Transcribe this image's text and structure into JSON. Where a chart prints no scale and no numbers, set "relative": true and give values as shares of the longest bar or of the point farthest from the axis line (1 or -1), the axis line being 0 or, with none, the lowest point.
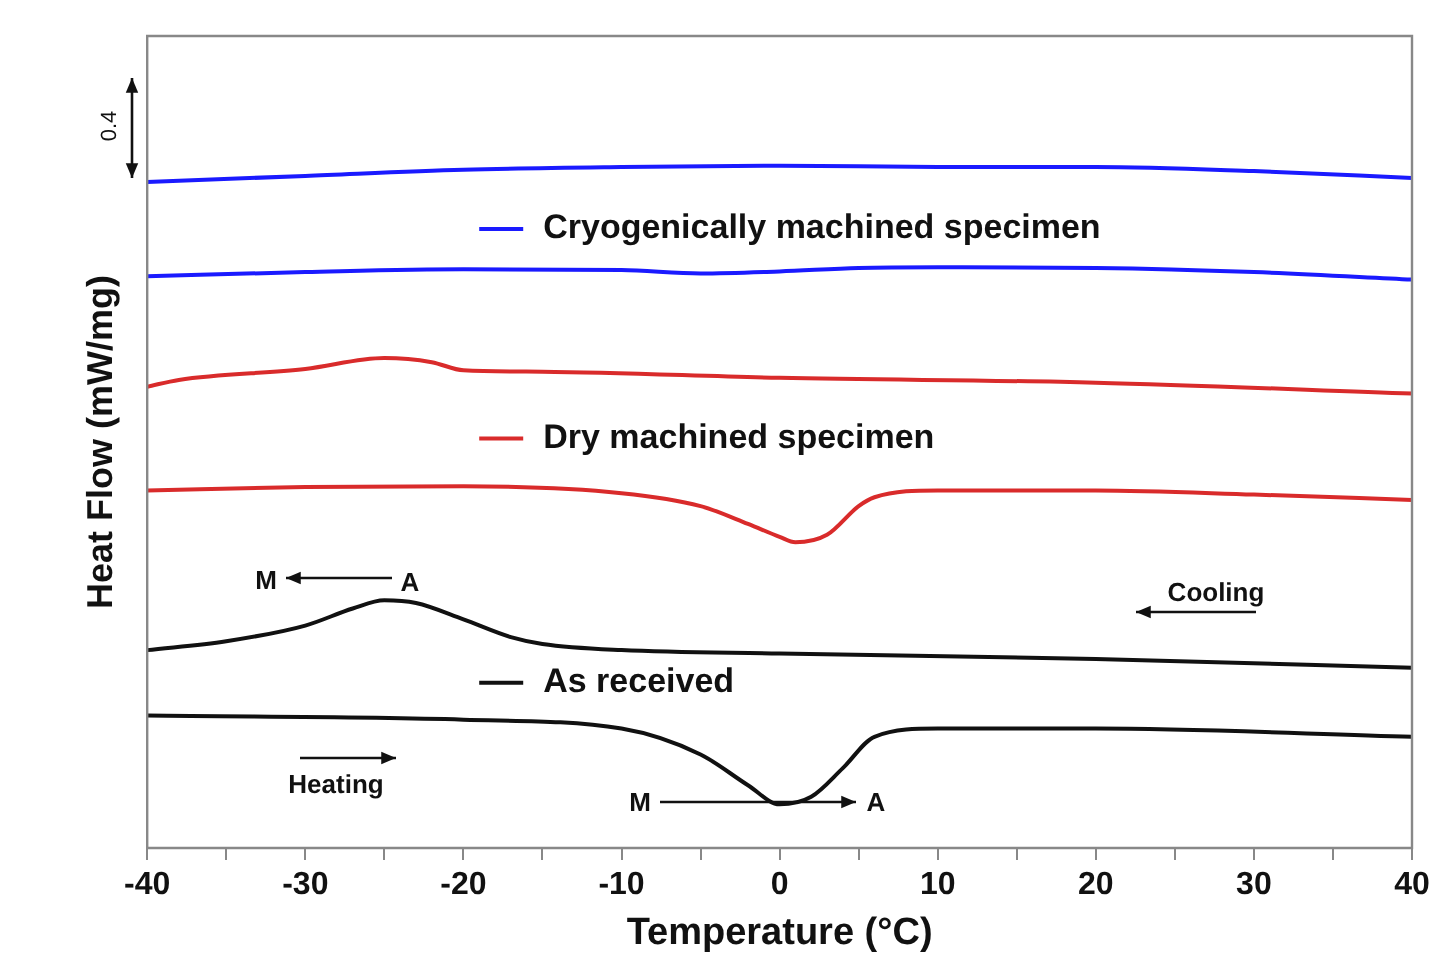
{
  "chart_data": {
    "type": "line",
    "xlabel": "Temperature (°C)",
    "ylabel": "Heat Flow (mW/mg)",
    "relative": true,
    "xlim": [
      -40,
      40
    ],
    "xticks": [
      -40,
      {
        "value": -35,
        "label": null
      },
      -30,
      {
        "value": -25,
        "label": null
      },
      -20,
      {
        "value": -15,
        "label": null
      },
      -10,
      {
        "value": -5,
        "label": null
      },
      0,
      {
        "value": 5,
        "label": null
      },
      10,
      {
        "value": 15,
        "label": null
      },
      20,
      {
        "value": 25,
        "label": null
      },
      30,
      {
        "value": 35,
        "label": null
      },
      40
    ],
    "grid": false,
    "marker": "none",
    "line_style": "solid",
    "legend": "center",
    "annotations": [
      "0.4",
      "M",
      "A",
      "Cooling",
      "Heating",
      "M",
      "A"
    ],
    "series": [
      {
        "name": "Cryogenically machined specimen",
        "color": "#1a1aff",
        "x": [
          -40,
          -30,
          -20,
          -10,
          0,
          10,
          20,
          30,
          40
        ],
        "values": [
          0.976,
          0.985,
          0.994,
          0.998,
          1.0,
          0.998,
          0.998,
          0.992,
          0.982
        ]
      },
      {
        "color": "#1a1aff",
        "x": [
          -40,
          -30,
          -20,
          -10,
          -5,
          0,
          5,
          10,
          20,
          30,
          40
        ],
        "values": [
          0.838,
          0.844,
          0.848,
          0.847,
          0.842,
          0.845,
          0.85,
          0.851,
          0.85,
          0.844,
          0.833
        ]
      },
      {
        "name": "Dry machined specimen",
        "color": "#d92b2b",
        "x": [
          -40,
          -38,
          -30,
          -25,
          -22,
          -20,
          -15,
          0,
          20,
          40
        ],
        "values": [
          0.676,
          0.686,
          0.702,
          0.718,
          0.712,
          0.7,
          0.698,
          0.689,
          0.682,
          0.666
        ]
      },
      {
        "color": "#d92b2b",
        "x": [
          -40,
          -30,
          -20,
          -10,
          -5,
          -2,
          0,
          1,
          3,
          5,
          6,
          10,
          20,
          30,
          40
        ],
        "values": [
          0.524,
          0.529,
          0.53,
          0.52,
          0.501,
          0.475,
          0.456,
          0.448,
          0.459,
          0.501,
          0.514,
          0.524,
          0.524,
          0.518,
          0.51
        ]
      },
      {
        "name": "As received",
        "color": "#111111",
        "x": [
          -40,
          -35,
          -30,
          -27,
          -25,
          -23,
          -20,
          -17,
          -15,
          -10,
          0,
          20,
          40
        ],
        "values": [
          0.29,
          0.303,
          0.326,
          0.351,
          0.363,
          0.359,
          0.335,
          0.309,
          0.299,
          0.29,
          0.285,
          0.277,
          0.264
        ]
      },
      {
        "color": "#111111",
        "x": [
          -40,
          -20,
          -10,
          -5,
          -2,
          0,
          2,
          4,
          6,
          10,
          20,
          40
        ],
        "values": [
          0.194,
          0.188,
          0.175,
          0.137,
          0.092,
          0.064,
          0.075,
          0.117,
          0.163,
          0.175,
          0.175,
          0.163
        ]
      }
    ]
  }
}
